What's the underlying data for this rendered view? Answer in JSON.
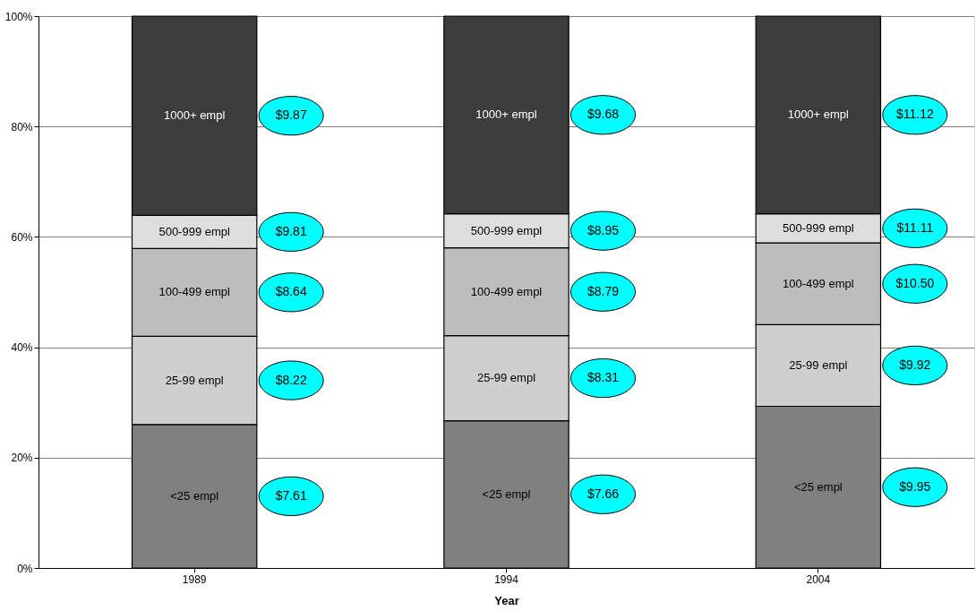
{
  "chart_data": {
    "type": "bar",
    "stacked": true,
    "xlabel": "Year",
    "categories": [
      "1989",
      "1994",
      "2004"
    ],
    "series": [
      {
        "name": "<25 empl",
        "color": "#808080",
        "values": [
          26.0,
          26.7,
          29.3
        ]
      },
      {
        "name": "25-99 empl",
        "color": "#cfcfcf",
        "values": [
          16.0,
          15.4,
          14.8
        ]
      },
      {
        "name": "100-499 empl",
        "color": "#bdbdbd",
        "values": [
          15.9,
          15.9,
          14.8
        ]
      },
      {
        "name": "500-999 empl",
        "color": "#dedede",
        "values": [
          6.0,
          6.2,
          5.3
        ]
      },
      {
        "name": "1000+ empl",
        "color": "#3c3c3c",
        "values": [
          36.1,
          35.8,
          35.8
        ]
      }
    ],
    "ylim": [
      0,
      100
    ],
    "yticks": [
      {
        "value": 0,
        "label": "0%"
      },
      {
        "value": 20,
        "label": "20%"
      },
      {
        "value": 40,
        "label": "40%"
      },
      {
        "value": 60,
        "label": "60%"
      },
      {
        "value": 80,
        "label": "80%"
      },
      {
        "value": 100,
        "label": "100%"
      }
    ],
    "grid": "y",
    "legend": false,
    "annotations": [
      "$7.61",
      "$8.22",
      "$8.64",
      "$9.81",
      "$9.87",
      "$7.66",
      "$8.31",
      "$8.79",
      "$8.95",
      "$9.68",
      "$9.95",
      "$9.92",
      "$10.50",
      "$11.11",
      "$11.12"
    ]
  }
}
